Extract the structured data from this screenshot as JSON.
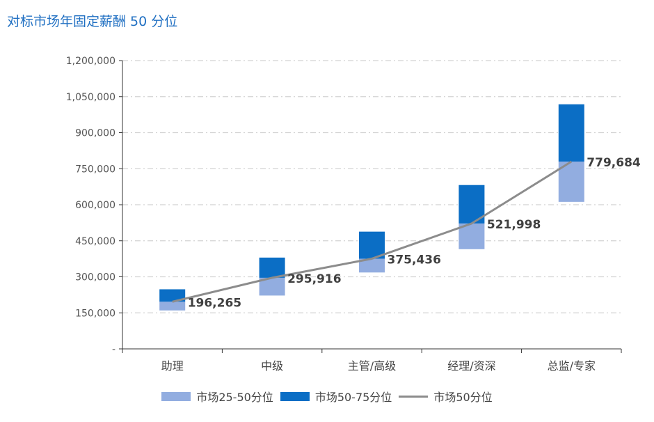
{
  "chart_data": {
    "type": "bar",
    "title": "对标市场年固定薪酬 50 分位",
    "categories": [
      "助理",
      "中级",
      "主管/高级",
      "经理/资深",
      "总监/专家"
    ],
    "y_ticks": [
      "-",
      "150,000",
      "300,000",
      "450,000",
      "600,000",
      "750,000",
      "900,000",
      "1,050,000",
      "1,200,000"
    ],
    "ylim": [
      0,
      1200000
    ],
    "grid": true,
    "legend_position": "bottom",
    "series": [
      {
        "name": "市场25-50分位",
        "kind": "floating-bar",
        "color": "#92ade0",
        "low": [
          160000,
          222000,
          318000,
          415000,
          612000
        ],
        "high": [
          196265,
          295916,
          375436,
          521998,
          779684
        ]
      },
      {
        "name": "市场50-75分位",
        "kind": "floating-bar",
        "color": "#0b6ec5",
        "low": [
          196265,
          295916,
          375436,
          521998,
          779684
        ],
        "high": [
          248000,
          380000,
          488000,
          682000,
          1018000
        ]
      },
      {
        "name": "市场50分位",
        "kind": "line",
        "color": "#8c8c8c",
        "values": [
          196265,
          295916,
          375436,
          521998,
          779684
        ],
        "labels": [
          "196,265",
          "295,916",
          "375,436",
          "521,998",
          "779,684"
        ]
      }
    ]
  }
}
